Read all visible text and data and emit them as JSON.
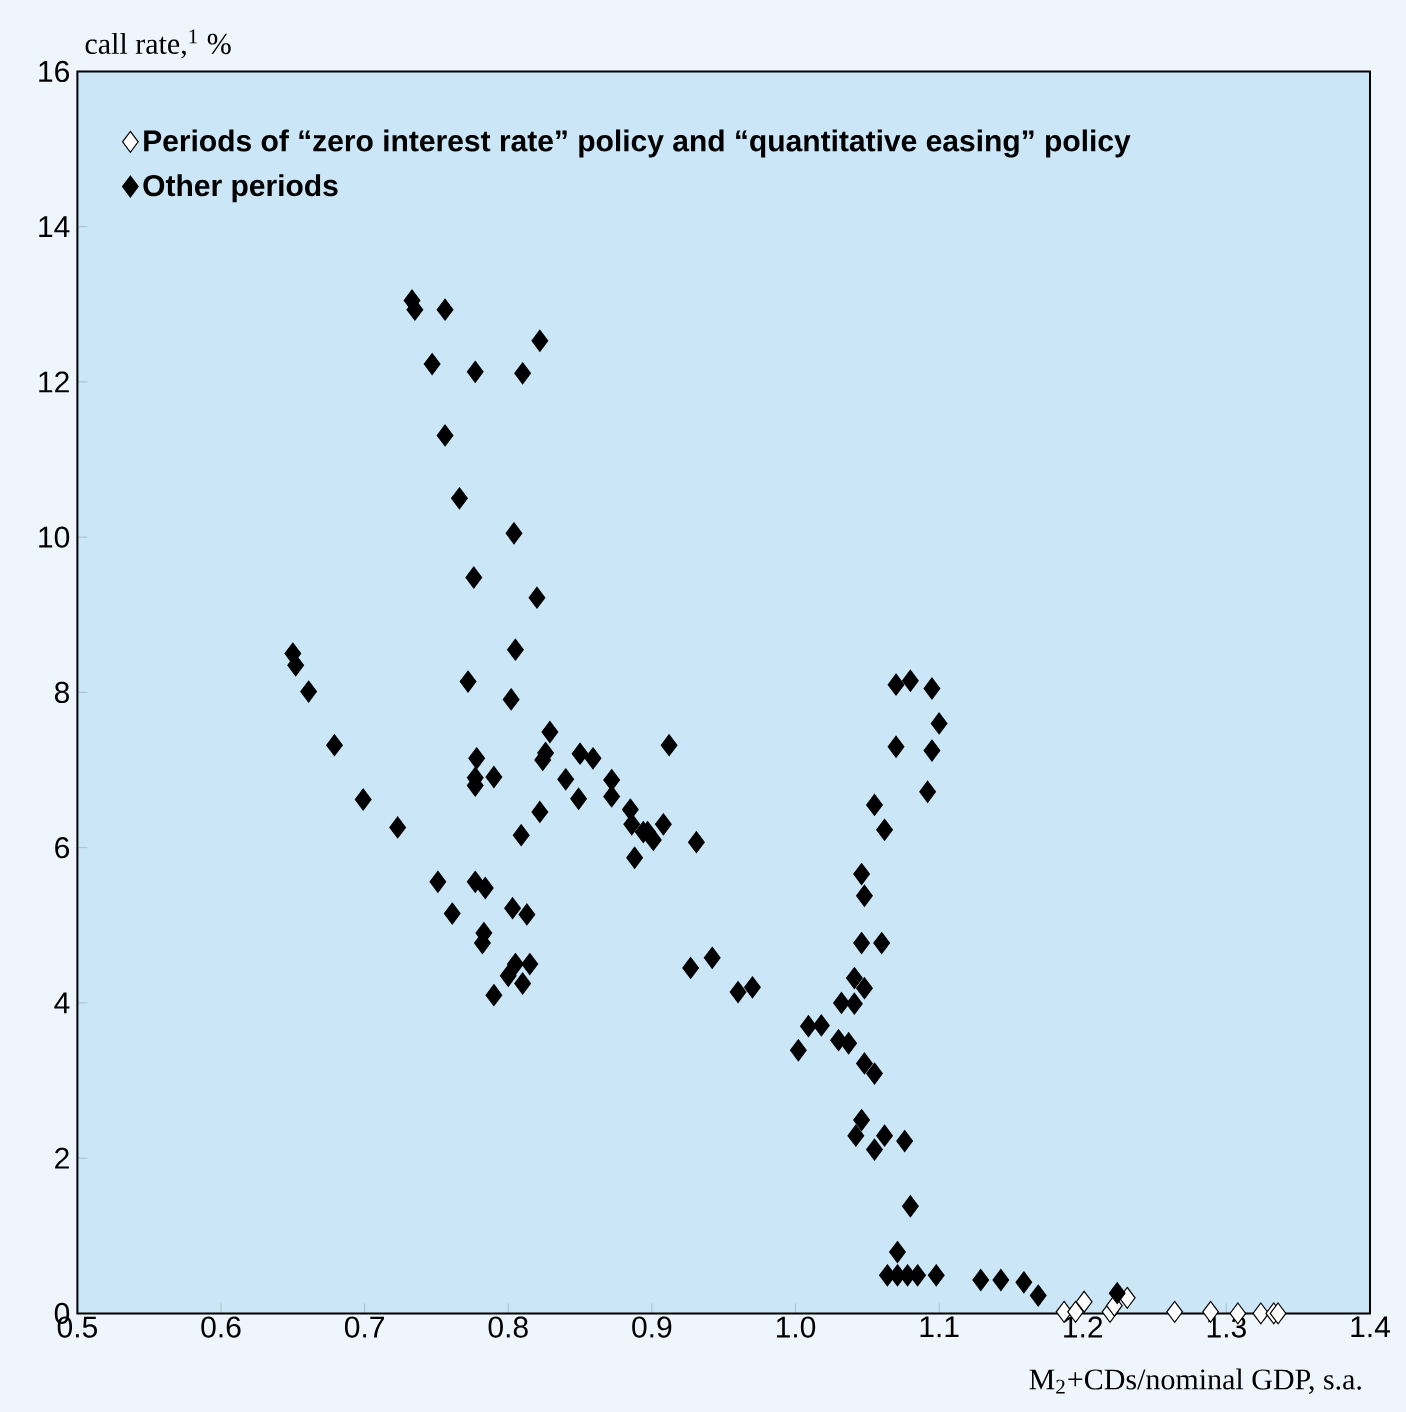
{
  "chart_data": {
    "type": "scatter",
    "xlabel": "M$_{2}$+CDs/nominal GDP, s.a.",
    "ylabel": "call rate,$^{1}$ %",
    "xlim": [
      0.5,
      1.4
    ],
    "xticks": [
      0.5,
      0.6,
      0.7,
      0.8,
      0.9,
      {
        "value": 1.0,
        "label": "1.0"
      },
      1.1,
      1.2,
      1.3,
      1.4
    ],
    "ylim": [
      0,
      16
    ],
    "yticks": [
      0,
      2,
      4,
      6,
      8,
      10,
      12,
      14,
      16
    ],
    "marker": "diamond",
    "legend": "top left",
    "series": [
      {
        "name": "**Periods of  “zero interest rate” policy and “quantitative easing” policy**",
        "color": "#ffffff",
        "x": [
          1.187,
          1.195,
          1.201,
          1.219,
          1.222,
          1.231,
          1.264,
          1.289,
          1.308,
          1.324,
          1.333,
          1.336
        ],
        "values": [
          0.02,
          0.02,
          0.15,
          0.02,
          0.1,
          0.2,
          0.02,
          0.02,
          0.0,
          0.0,
          0.0,
          0.0
        ]
      },
      {
        "name": "**Other periods**",
        "color": "#000000",
        "x": [
          0.65,
          0.652,
          0.661,
          0.679,
          0.699,
          0.723,
          0.733,
          0.735,
          0.756,
          0.822,
          0.747,
          0.777,
          0.81,
          0.756,
          0.766,
          0.804,
          0.776,
          0.82,
          0.805,
          0.772,
          0.802,
          0.829,
          0.778,
          0.826,
          0.824,
          0.85,
          0.859,
          0.912,
          0.777,
          0.79,
          0.777,
          0.84,
          0.872,
          0.849,
          0.872,
          0.885,
          0.822,
          0.809,
          0.886,
          0.894,
          0.901,
          0.908,
          0.897,
          0.931,
          0.888,
          0.751,
          0.777,
          0.784,
          0.761,
          0.803,
          0.813,
          0.783,
          0.782,
          0.79,
          0.8,
          0.81,
          0.805,
          0.815,
          0.927,
          0.942,
          0.96,
          0.97,
          1.002,
          1.009,
          1.018,
          1.03,
          1.037,
          1.032,
          1.041,
          1.041,
          1.048,
          1.046,
          1.06,
          1.048,
          1.055,
          1.046,
          1.048,
          1.055,
          1.062,
          1.092,
          1.07,
          1.08,
          1.095,
          1.1,
          1.095,
          1.07,
          1.046,
          1.042,
          1.055,
          1.062,
          1.076,
          1.08,
          1.071,
          1.064,
          1.071,
          1.078,
          1.085,
          1.098,
          1.129,
          1.143,
          1.159,
          1.169,
          1.224
        ],
        "values": [
          8.5,
          8.35,
          8.01,
          7.32,
          6.62,
          6.26,
          13.05,
          12.93,
          12.93,
          12.53,
          12.23,
          12.13,
          12.11,
          11.31,
          10.5,
          10.05,
          9.48,
          9.22,
          8.55,
          8.14,
          7.91,
          7.49,
          7.15,
          7.22,
          7.13,
          7.21,
          7.15,
          7.32,
          6.9,
          6.91,
          6.8,
          6.88,
          6.87,
          6.63,
          6.66,
          6.49,
          6.46,
          6.16,
          6.3,
          6.2,
          6.1,
          6.3,
          6.2,
          6.07,
          5.87,
          5.56,
          5.56,
          5.48,
          5.15,
          5.22,
          5.14,
          4.9,
          4.77,
          4.1,
          4.35,
          4.25,
          4.5,
          4.5,
          4.45,
          4.58,
          4.14,
          4.2,
          3.39,
          3.7,
          3.71,
          3.52,
          3.48,
          4.0,
          3.99,
          4.32,
          4.19,
          4.77,
          4.77,
          3.22,
          3.09,
          5.66,
          5.38,
          6.55,
          6.23,
          6.72,
          7.3,
          8.15,
          8.05,
          7.6,
          7.25,
          8.1,
          2.49,
          2.29,
          2.11,
          2.29,
          2.22,
          1.38,
          0.79,
          0.49,
          0.49,
          0.49,
          0.49,
          0.49,
          0.43,
          0.43,
          0.4,
          0.23,
          0.26
        ]
      }
    ]
  }
}
